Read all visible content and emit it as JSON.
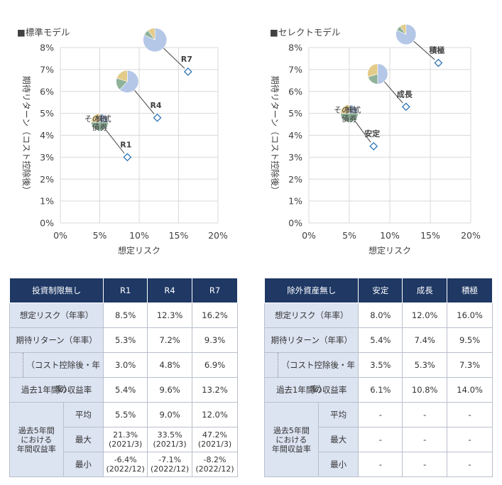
{
  "chart_data": [
    {
      "type": "scatter",
      "title": "標準モデル",
      "xlabel": "想定リスク",
      "ylabel": "期待リターン（コスト控除後）",
      "xlim": [
        0,
        20
      ],
      "ylim": [
        0,
        8
      ],
      "x_ticks": [
        "0%",
        "5%",
        "10%",
        "15%",
        "20%"
      ],
      "y_ticks": [
        "0%",
        "1%",
        "2%",
        "3%",
        "4%",
        "5%",
        "6%",
        "7%",
        "8%"
      ],
      "grid": true,
      "points": [
        {
          "name": "R1",
          "x": 8.5,
          "y": 3.0
        },
        {
          "name": "R4",
          "x": 12.3,
          "y": 4.8
        },
        {
          "name": "R7",
          "x": 16.2,
          "y": 6.9
        }
      ],
      "pies": [
        {
          "point": "R1",
          "cx": 5.0,
          "cy": 4.6,
          "r": 2.6,
          "slices": {
            "stocks": 25,
            "bonds": 50,
            "other": 25
          },
          "labels": {
            "stocks": "株式",
            "bonds": "債券",
            "other": "その他"
          }
        },
        {
          "point": "R4",
          "cx": 8.5,
          "cy": 6.45,
          "r": 3.4,
          "slices": {
            "stocks": 62,
            "bonds": 18,
            "other": 20
          }
        },
        {
          "point": "R7",
          "cx": 12.0,
          "cy": 8.35,
          "r": 3.6,
          "slices": {
            "stocks": 82,
            "bonds": 8,
            "other": 10
          }
        }
      ],
      "colors": {
        "stocks": "#b4c7e7",
        "bonds": "#8fb299",
        "other": "#e3cb8a",
        "marker": "#2e75b6"
      }
    },
    {
      "type": "scatter",
      "title": "セレクトモデル",
      "xlabel": "想定リスク",
      "ylabel": "期待リターン（コスト控除後）",
      "xlim": [
        0,
        20
      ],
      "ylim": [
        0,
        8
      ],
      "x_ticks": [
        "0%",
        "5%",
        "10%",
        "15%",
        "20%"
      ],
      "y_ticks": [
        "0%",
        "1%",
        "2%",
        "3%",
        "4%",
        "5%",
        "6%",
        "7%",
        "8%"
      ],
      "grid": true,
      "points": [
        {
          "name": "安定",
          "x": 8.0,
          "y": 3.5
        },
        {
          "name": "成長",
          "x": 12.0,
          "y": 5.3
        },
        {
          "name": "積極",
          "x": 16.0,
          "y": 7.3
        }
      ],
      "pies": [
        {
          "point": "安定",
          "cx": 5.0,
          "cy": 5.0,
          "r": 2.6,
          "slices": {
            "stocks": 25,
            "bonds": 50,
            "other": 25
          },
          "labels": {
            "stocks": "株式",
            "bonds": "債券",
            "other": "その他"
          }
        },
        {
          "point": "成長",
          "cx": 8.5,
          "cy": 6.8,
          "r": 3.0,
          "slices": {
            "stocks": 50,
            "bonds": 20,
            "other": 30
          }
        },
        {
          "point": "積極",
          "cx": 12.0,
          "cy": 8.6,
          "r": 3.0,
          "slices": {
            "stocks": 82,
            "bonds": 8,
            "other": 10
          }
        }
      ],
      "colors": {
        "stocks": "#b4c7e7",
        "bonds": "#8fb299",
        "other": "#e3cb8a",
        "marker": "#2e75b6"
      }
    }
  ],
  "tables": {
    "standard": {
      "header": [
        "投資制限無し",
        "R1",
        "R4",
        "R7"
      ],
      "risk": {
        "label": "想定リスク（年率）",
        "values": [
          "8.5%",
          "12.3%",
          "16.2%"
        ]
      },
      "ret": {
        "label": "期待リターン（年率）",
        "values": [
          "5.3%",
          "7.2%",
          "9.3%"
        ]
      },
      "net": {
        "label": "（コスト控除後・年率）",
        "values": [
          "3.0%",
          "4.8%",
          "6.9%"
        ]
      },
      "one_year": {
        "label": "過去1年間の収益率",
        "values": [
          "5.4%",
          "9.6%",
          "13.2%"
        ]
      },
      "five_year": {
        "label": [
          "過去5年間",
          "における",
          "年間収益率"
        ],
        "avg": {
          "label": "平均",
          "values": [
            "5.5%",
            "9.0%",
            "12.0%"
          ]
        },
        "max": {
          "label": "最大",
          "values": [
            [
              "21.3%",
              "(2021/3)"
            ],
            [
              "33.5%",
              "(2021/3)"
            ],
            [
              "47.2%",
              "(2021/3)"
            ]
          ]
        },
        "min": {
          "label": "最小",
          "values": [
            [
              "-6.4%",
              "(2022/12)"
            ],
            [
              "-7.1%",
              "(2022/12)"
            ],
            [
              "-8.2%",
              "(2022/12)"
            ]
          ]
        }
      }
    },
    "select": {
      "header": [
        "除外資産無し",
        "安定",
        "成長",
        "積極"
      ],
      "risk": {
        "label": "想定リスク（年率）",
        "values": [
          "8.0%",
          "12.0%",
          "16.0%"
        ]
      },
      "ret": {
        "label": "期待リターン（年率）",
        "values": [
          "5.4%",
          "7.4%",
          "9.5%"
        ]
      },
      "net": {
        "label": "（コスト控除後・年率）",
        "values": [
          "3.5%",
          "5.3%",
          "7.3%"
        ]
      },
      "one_year": {
        "label": "過去1年間の収益率",
        "values": [
          "6.1%",
          "10.8%",
          "14.0%"
        ]
      },
      "five_year": {
        "label": [
          "過去5年間",
          "における",
          "年間収益率"
        ],
        "avg": {
          "label": "平均",
          "values": [
            "-",
            "-",
            "-"
          ]
        },
        "max": {
          "label": "最大",
          "values": [
            "-",
            "-",
            "-"
          ]
        },
        "min": {
          "label": "最小",
          "values": [
            "-",
            "-",
            "-"
          ]
        }
      }
    }
  }
}
